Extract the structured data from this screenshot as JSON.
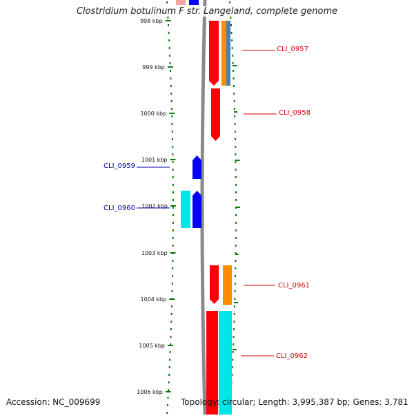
{
  "title": "Clostridium botulinum F str. Langeland, complete genome",
  "footer": {
    "accession": "Accession: NC_009699",
    "topology": "Topology: circular; Length: 3,995,387 bp; Genes: 3,781"
  },
  "colors": {
    "tick": "#0a7a0a",
    "backbone": "#8a8a8a",
    "forward_cds": "#ff0000",
    "forward_gene": "#ff8c00",
    "forward_alt": "#4682b4",
    "reverse_cds": "#0000ff",
    "reverse_gene": "#00e5e5",
    "forward_label": "#cc0000",
    "reverse_label": "#0000aa"
  },
  "ruler": {
    "labels": [
      "998 kbp",
      "999 kbp",
      "1000 kbp",
      "1001 kbp",
      "1002 kbp",
      "1003 kbp",
      "1004 kbp",
      "1005 kbp",
      "1006 kbp"
    ]
  },
  "features": [
    {
      "name": "CLI_0957",
      "strand": "forward"
    },
    {
      "name": "CLI_0958",
      "strand": "forward"
    },
    {
      "name": "CLI_0959",
      "strand": "reverse"
    },
    {
      "name": "CLI_0960",
      "strand": "reverse"
    },
    {
      "name": "CLI_0961",
      "strand": "forward"
    },
    {
      "name": "CLI_0962",
      "strand": "forward"
    }
  ]
}
